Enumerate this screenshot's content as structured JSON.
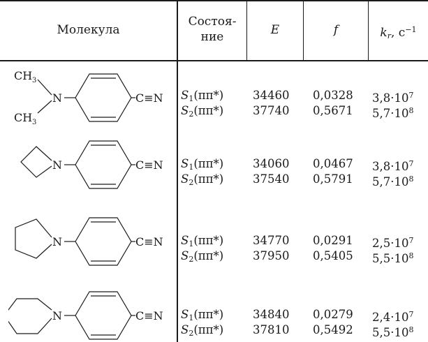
{
  "headers": {
    "molecule": "Молекула",
    "state_line1": "Состоя-",
    "state_line2": "ние",
    "energy": "E",
    "f": "f",
    "kr_sym": "k",
    "kr_sub": "r",
    "kr_unit": ", с",
    "kr_exp": "−1"
  },
  "molecule_labels": {
    "methyl": "CH",
    "methyl_sub": "3",
    "nitrogen": "N",
    "nitrile": "C≡N"
  },
  "rows": [
    {
      "states": [
        {
          "s": "S",
          "n": "1",
          "t": "(ππ*)",
          "E": "34460",
          "f": "0,0328",
          "k": "3,8·10",
          "e": "7"
        },
        {
          "s": "S",
          "n": "2",
          "t": "(ππ*)",
          "E": "37740",
          "f": "0,5671",
          "k": "5,7·10",
          "e": "8"
        }
      ]
    },
    {
      "states": [
        {
          "s": "S",
          "n": "1",
          "t": "(ππ*)",
          "E": "34060",
          "f": "0,0467",
          "k": "3,8·10",
          "e": "7"
        },
        {
          "s": "S",
          "n": "2",
          "t": "(ππ*)",
          "E": "37540",
          "f": "0,5791",
          "k": "5,7·10",
          "e": "8"
        }
      ]
    },
    {
      "states": [
        {
          "s": "S",
          "n": "1",
          "t": "(ππ*)",
          "E": "34770",
          "f": "0,0291",
          "k": "2,5·10",
          "e": "7"
        },
        {
          "s": "S",
          "n": "2",
          "t": "(ππ*)",
          "E": "37950",
          "f": "0,5405",
          "k": "5,5·10",
          "e": "8"
        }
      ]
    },
    {
      "states": [
        {
          "s": "S",
          "n": "1",
          "t": "(ππ*)",
          "E": "34840",
          "f": "0,0279",
          "k": "2,4·10",
          "e": "7"
        },
        {
          "s": "S",
          "n": "2",
          "t": "(ππ*)",
          "E": "37810",
          "f": "0,5492",
          "k": "5,5·10",
          "e": "8"
        }
      ]
    }
  ]
}
